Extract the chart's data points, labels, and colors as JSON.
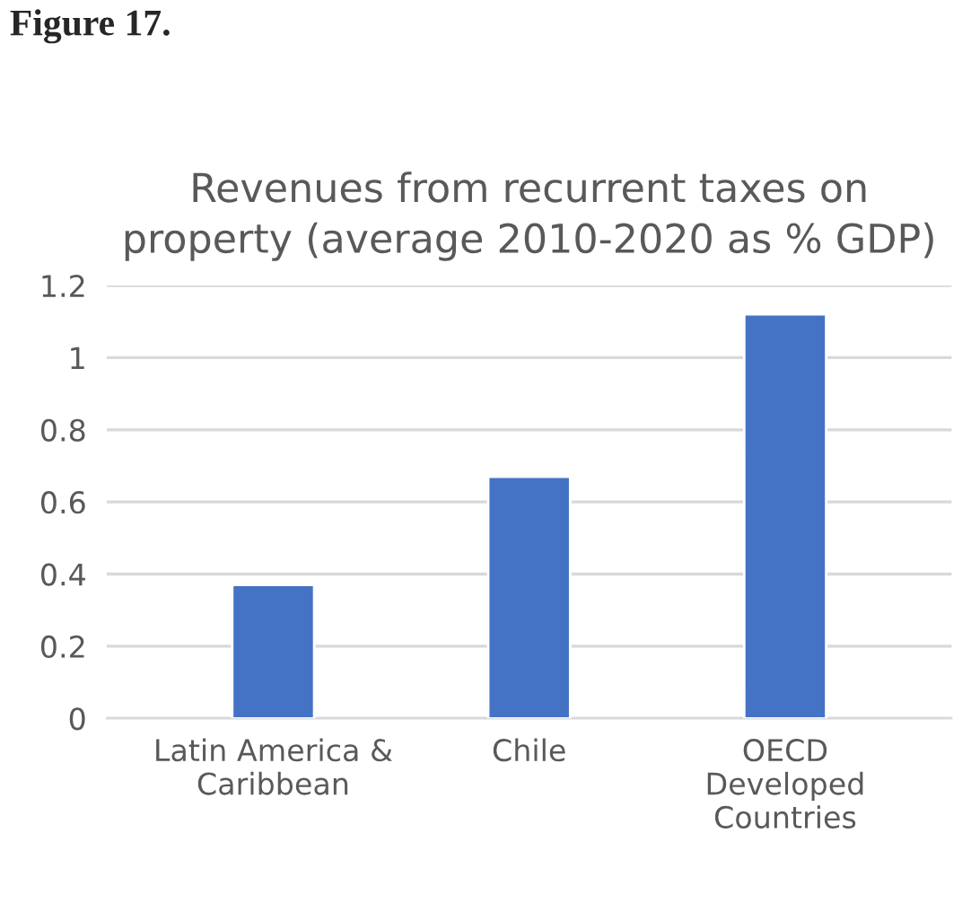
{
  "chart_data": {
    "type": "bar",
    "title": "Revenues from recurrent taxes on property (average 2010-2020 as % GDP)",
    "annotations": [
      "Figure 17."
    ],
    "categories": [
      "Latin America &\nCaribbean",
      "Chile",
      "OECD\nDeveloped\nCountries"
    ],
    "values": [
      0.37,
      0.67,
      1.12
    ],
    "color": "#4472c4",
    "ylim": [
      0,
      1.2
    ],
    "yticks": [
      {
        "value": 0,
        "label": "0"
      },
      0.2,
      0.4,
      0.6,
      0.8,
      {
        "value": 1,
        "label": "1"
      },
      1.2
    ],
    "grid": "y"
  }
}
